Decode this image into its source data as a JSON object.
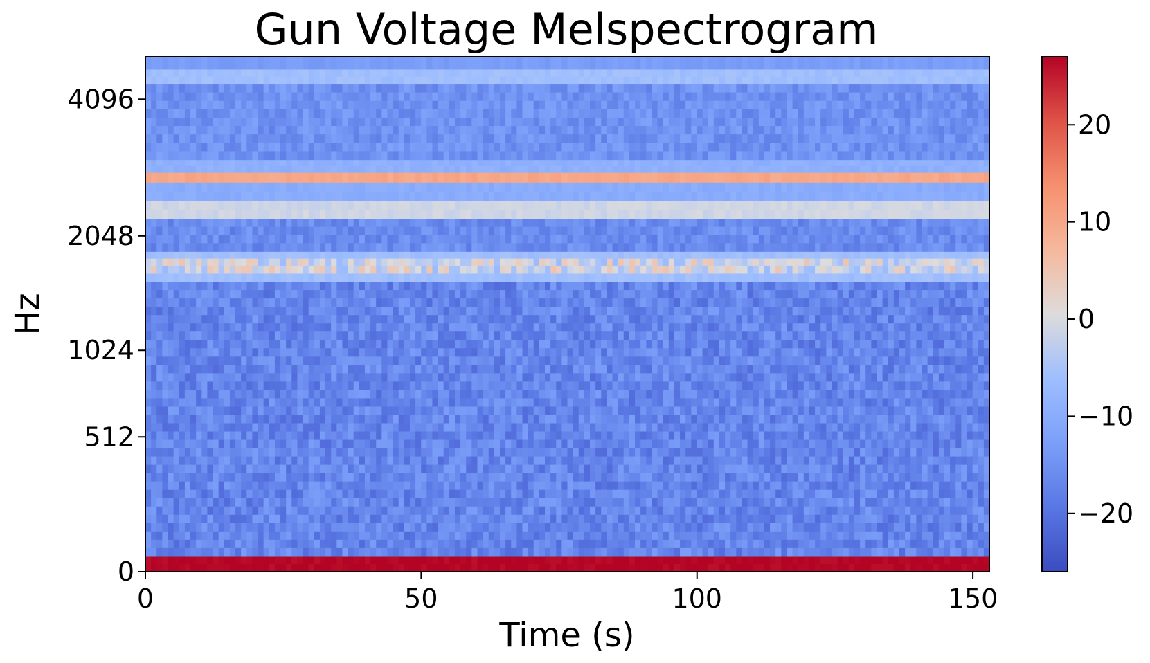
{
  "chart_data": {
    "type": "heatmap",
    "title": "Gun Voltage Melspectrogram",
    "xlabel": "Time (s)",
    "ylabel": "Hz",
    "x_range": [
      0,
      153
    ],
    "x_ticks": [
      0,
      50,
      100,
      150
    ],
    "y_scale": "mel",
    "y_range_hz": [
      0,
      5000
    ],
    "y_ticks": [
      0,
      512,
      1024,
      2048,
      4096
    ],
    "colormap": "coolwarm",
    "colorbar": {
      "range": [
        -26,
        27
      ],
      "ticks": [
        -20,
        -10,
        0,
        10,
        20
      ]
    },
    "bands": [
      {
        "hz": [
          0,
          45
        ],
        "level_db": 27
      },
      {
        "hz": [
          45,
          1580
        ],
        "level_db": -17,
        "variation": 4
      },
      {
        "hz": [
          1580,
          1660
        ],
        "level_db": -6
      },
      {
        "hz": [
          1660,
          1810
        ],
        "level_db": -1,
        "variation": 6
      },
      {
        "hz": [
          1810,
          1880
        ],
        "level_db": -6
      },
      {
        "hz": [
          1880,
          2250
        ],
        "level_db": -16,
        "variation": 3
      },
      {
        "hz": [
          2250,
          2470
        ],
        "level_db": -1
      },
      {
        "hz": [
          2470,
          2720
        ],
        "level_db": -10
      },
      {
        "hz": [
          2720,
          2860
        ],
        "level_db": 10
      },
      {
        "hz": [
          2860,
          3050
        ],
        "level_db": -9
      },
      {
        "hz": [
          3050,
          4400
        ],
        "level_db": -15,
        "variation": 3
      },
      {
        "hz": [
          4400,
          4720
        ],
        "level_db": -6
      },
      {
        "hz": [
          4720,
          5000
        ],
        "level_db": -13
      }
    ]
  }
}
